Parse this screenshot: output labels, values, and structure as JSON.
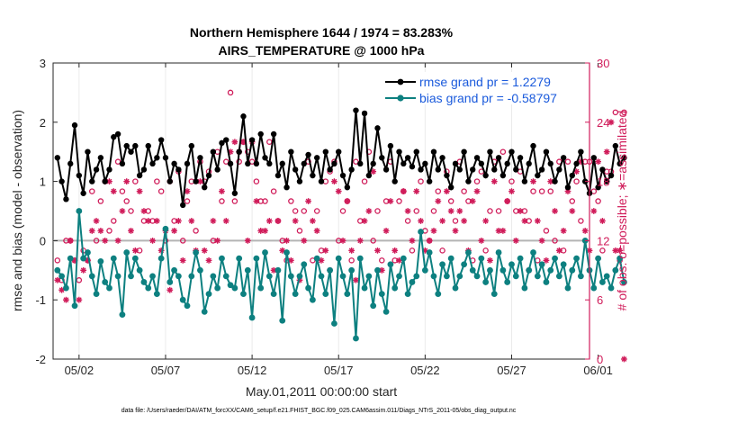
{
  "chart_data": {
    "type": "line",
    "title": "Northern Hemisphere 1644 / 1974 = 83.283%",
    "subtitle": "AIRS_TEMPERATURE @ 1000 hPa",
    "xlabel": "May.01,2011 00:00:00 start",
    "ylabel": "rmse and bias (model - observation)",
    "ylabel_right": "# of obs: o=possible; ∗=assimilated",
    "footnote": "data file: /Users/raeder/DAI/ATM_forcXX/CAM6_setup/f.e21.FHIST_BGC.f09_025.CAM6assim.011/Diags_NTrS_2011-05/obs_diag_output.nc",
    "xlim": [
      0.5,
      31.5
    ],
    "ylim": [
      -2,
      3
    ],
    "ylim_right": [
      0,
      30
    ],
    "x_tick_values": [
      2,
      7,
      12,
      17,
      22,
      27,
      32
    ],
    "x_tick_labels": [
      "05/02",
      "05/07",
      "05/12",
      "05/17",
      "05/22",
      "05/27",
      "06/01"
    ],
    "y_ticks": [
      -2,
      -1,
      0,
      1,
      2,
      3
    ],
    "y_right_ticks": [
      0,
      6,
      12,
      18,
      24,
      30
    ],
    "zero_line": 0,
    "colors": {
      "rmse": "#000000",
      "bias": "#0d8080",
      "obs": "#d01c5a",
      "zero": "#b4b4b4",
      "legend_text": "#1a5adc"
    },
    "x_start": 0.75,
    "x_step": 0.25,
    "series": [
      {
        "name": "rmse",
        "legend": "rmse grand pr = 1.2279",
        "values": [
          1.4,
          1.0,
          0.7,
          1.3,
          1.95,
          1.1,
          0.8,
          1.5,
          1.0,
          1.2,
          1.4,
          1.0,
          1.2,
          1.75,
          1.8,
          1.3,
          1.6,
          1.5,
          1.6,
          1.1,
          1.2,
          1.6,
          1.3,
          1.4,
          1.7,
          1.4,
          1.0,
          1.3,
          1.2,
          0.6,
          1.3,
          1.6,
          1.0,
          1.4,
          0.9,
          1.1,
          1.5,
          1.2,
          1.65,
          1.7,
          1.3,
          0.8,
          1.5,
          2.1,
          1.3,
          1.7,
          1.3,
          1.8,
          1.4,
          1.3,
          1.8,
          1.1,
          1.3,
          0.9,
          1.5,
          1.2,
          1.0,
          1.3,
          1.45,
          1.1,
          1.4,
          1.0,
          1.5,
          1.2,
          1.3,
          1.5,
          1.1,
          0.9,
          1.2,
          2.2,
          1.3,
          2.15,
          1.1,
          1.3,
          1.9,
          1.4,
          1.2,
          1.6,
          1.0,
          1.5,
          1.3,
          1.4,
          1.25,
          1.5,
          1.2,
          1.3,
          1.0,
          1.5,
          1.2,
          1.4,
          1.1,
          0.9,
          1.3,
          1.2,
          1.5,
          1.0,
          1.2,
          1.4,
          1.3,
          1.1,
          1.5,
          1.2,
          1.4,
          1.1,
          1.3,
          1.5,
          1.2,
          1.4,
          1.0,
          1.3,
          1.6,
          1.1,
          1.2,
          1.5,
          1.3,
          1.0,
          1.2,
          1.4,
          0.9,
          1.1,
          1.3,
          1.5,
          1.0,
          0.8,
          1.4,
          0.9,
          1.2,
          1.0,
          1.1,
          1.6,
          1.3,
          1.4
        ]
      },
      {
        "name": "bias",
        "legend": "bias grand pr = -0.58797",
        "values": [
          -0.5,
          -0.6,
          -0.8,
          -0.3,
          -1.1,
          0.5,
          -0.3,
          -0.2,
          -0.6,
          -0.9,
          -0.35,
          -0.7,
          -0.8,
          -0.3,
          -0.6,
          -1.25,
          -0.2,
          -0.6,
          -0.3,
          -0.5,
          -0.7,
          -0.8,
          -0.6,
          -0.9,
          -0.3,
          0.2,
          -0.7,
          -0.5,
          -0.6,
          -1.0,
          -1.1,
          -0.6,
          -0.2,
          -0.5,
          -1.2,
          -0.9,
          -0.6,
          -0.8,
          -0.3,
          -0.6,
          -0.75,
          -0.8,
          -0.3,
          -0.9,
          -0.5,
          -1.3,
          -0.3,
          -0.8,
          -0.2,
          -0.6,
          -0.9,
          -0.5,
          -1.35,
          -0.2,
          -0.6,
          -0.9,
          -0.6,
          -0.4,
          -0.8,
          -1.0,
          -0.3,
          -0.6,
          -0.9,
          -0.5,
          -1.4,
          -0.3,
          -0.6,
          -0.9,
          -0.5,
          -1.65,
          -0.3,
          -0.8,
          -0.6,
          -1.1,
          -0.5,
          -0.9,
          -1.2,
          -0.4,
          -0.8,
          -0.6,
          -0.3,
          -0.9,
          -0.7,
          -0.6,
          0.15,
          -0.5,
          -0.2,
          -0.6,
          -0.9,
          -0.4,
          -0.6,
          -0.3,
          -0.8,
          -0.6,
          -0.4,
          -0.2,
          -0.5,
          -0.6,
          -0.3,
          -0.7,
          -0.5,
          -0.9,
          -0.2,
          -0.5,
          -0.7,
          -0.4,
          -0.6,
          -0.3,
          -0.8,
          -0.5,
          -0.2,
          -0.6,
          -0.4,
          -0.7,
          -0.5,
          -0.3,
          -0.6,
          -0.4,
          -0.8,
          -0.5,
          -0.3,
          -0.6,
          0.0,
          -0.5,
          -0.8,
          -0.3,
          -0.7,
          -0.6,
          -0.8,
          -0.5,
          -0.3,
          -0.7
        ]
      },
      {
        "name": "possible",
        "values": [
          10,
          8,
          12,
          12,
          10,
          8,
          11,
          10,
          17,
          12,
          16,
          18,
          13,
          14,
          20,
          17,
          16,
          15,
          18,
          11,
          14,
          15,
          14,
          18,
          17,
          12,
          18,
          14,
          19,
          12,
          16,
          18,
          13,
          20,
          18,
          19,
          12,
          21,
          16,
          20,
          27,
          16,
          20,
          22,
          21,
          20,
          18,
          16,
          16,
          22,
          17,
          14,
          12,
          10,
          16,
          15,
          13,
          15,
          20,
          10,
          15,
          11,
          18,
          19,
          20,
          12,
          15,
          16,
          10,
          20,
          14,
          18,
          21,
          12,
          15,
          10,
          16,
          20,
          10,
          16,
          17,
          14,
          11,
          15,
          18,
          13,
          12,
          15,
          17,
          11,
          19,
          16,
          14,
          20,
          17,
          16,
          10,
          18,
          19,
          11,
          15,
          20,
          15,
          21,
          16,
          18,
          15,
          19,
          15,
          14,
          17,
          10,
          17,
          13,
          17,
          12,
          20,
          11,
          20,
          16,
          18,
          14,
          20,
          20,
          17,
          16,
          11,
          19,
          19,
          25,
          10,
          25
        ]
      },
      {
        "name": "assimilated",
        "values": [
          8,
          7,
          6,
          12,
          10,
          6,
          9,
          10,
          13,
          14,
          13,
          12,
          18,
          17,
          12,
          15,
          18,
          13,
          11,
          17,
          15,
          14,
          12,
          14,
          11,
          13,
          7,
          13,
          14,
          10,
          17,
          14,
          11,
          18,
          11,
          10,
          14,
          12,
          17,
          14,
          21,
          22,
          21,
          22,
          12,
          22,
          16,
          13,
          13,
          14,
          9,
          14,
          11,
          12,
          10,
          14,
          8,
          12,
          16,
          14,
          13,
          10,
          11,
          9,
          18,
          17,
          12,
          16,
          11,
          8,
          12,
          14,
          15,
          19,
          11,
          9,
          13,
          16,
          11,
          10,
          17,
          15,
          12,
          17,
          14,
          11,
          12,
          13,
          16,
          14,
          17,
          15,
          13,
          15,
          14,
          11,
          16,
          17,
          12,
          14,
          10,
          18,
          13,
          13,
          16,
          17,
          12,
          15,
          14,
          9,
          18,
          14,
          12,
          10,
          18,
          15,
          11,
          13,
          17,
          15,
          19,
          20,
          13,
          11,
          15,
          20,
          14,
          21,
          24,
          11,
          11,
          0
        ]
      }
    ]
  }
}
